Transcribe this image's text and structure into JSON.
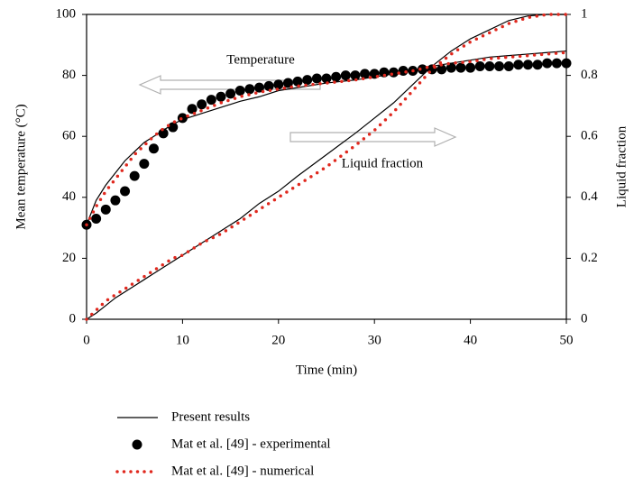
{
  "chart_data": {
    "type": "line",
    "x_label": "Time (min)",
    "y_label": "Mean temperature (°C)",
    "y2_label": "Liquid fraction",
    "xlim": [
      0,
      50
    ],
    "xticks": [
      0,
      10,
      20,
      30,
      40,
      50
    ],
    "ylim": [
      0,
      100
    ],
    "yticks": [
      0,
      20,
      40,
      60,
      80,
      100
    ],
    "y2lim": [
      0,
      1
    ],
    "y2ticks": [
      0,
      0.2,
      0.4,
      0.6,
      0.8,
      1
    ],
    "annotations": [
      "Temperature",
      "Liquid fraction"
    ],
    "series": [
      {
        "name": "Present results",
        "style": "line",
        "color": "#000000",
        "x": [
          0,
          1,
          2,
          3,
          4,
          5,
          6,
          7,
          8,
          9,
          10,
          12,
          14,
          16,
          18,
          20,
          22,
          25,
          28,
          30,
          32,
          34,
          36,
          38,
          40,
          42,
          44,
          46,
          48,
          50
        ],
        "values": [
          31,
          39,
          44,
          48,
          52,
          55,
          58,
          60,
          62,
          64,
          65.5,
          67.5,
          69.5,
          71.5,
          73,
          75,
          76,
          77.5,
          78.5,
          79.5,
          80.5,
          81.5,
          83,
          84,
          85,
          86,
          86.5,
          87,
          87.5,
          88
        ]
      },
      {
        "name": "Present results",
        "style": "line",
        "color": "#000000",
        "axis": "y2",
        "x": [
          0,
          1,
          2,
          3,
          4,
          5,
          6,
          7,
          8,
          9,
          10,
          12,
          14,
          16,
          18,
          20,
          22,
          25,
          28,
          30,
          32,
          34,
          36,
          38,
          40,
          42,
          44,
          46,
          48,
          50
        ],
        "values": [
          0,
          0.02,
          0.045,
          0.07,
          0.09,
          0.11,
          0.13,
          0.15,
          0.17,
          0.19,
          0.21,
          0.25,
          0.29,
          0.33,
          0.38,
          0.42,
          0.47,
          0.54,
          0.61,
          0.66,
          0.71,
          0.77,
          0.83,
          0.88,
          0.92,
          0.95,
          0.98,
          0.995,
          1,
          1
        ]
      },
      {
        "name": "Mat et al. [49] - experimental",
        "style": "marker",
        "color": "#000000",
        "x": [
          0,
          1,
          2,
          3,
          4,
          5,
          6,
          7,
          8,
          9,
          10,
          11,
          12,
          13,
          14,
          15,
          16,
          17,
          18,
          19,
          20,
          21,
          22,
          23,
          24,
          25,
          26,
          27,
          28,
          29,
          30,
          31,
          32,
          33,
          34,
          35,
          36,
          37,
          38,
          39,
          40,
          41,
          42,
          43,
          44,
          45,
          46,
          47,
          48,
          49,
          50
        ],
        "values": [
          31,
          33,
          36,
          39,
          42,
          47,
          51,
          56,
          61,
          63,
          66,
          69,
          70.5,
          72,
          73,
          74,
          75,
          75.5,
          76,
          76.5,
          77,
          77.5,
          78,
          78.5,
          79,
          79,
          79.5,
          80,
          80,
          80.5,
          80.5,
          81,
          81,
          81.5,
          81.5,
          82,
          82,
          82,
          82.5,
          82.5,
          82.5,
          83,
          83,
          83,
          83,
          83.5,
          83.5,
          83.5,
          84,
          84,
          84
        ]
      },
      {
        "name": "Mat et al. [49] - numerical",
        "style": "dotted",
        "color": "#e0281e",
        "x": [
          0,
          1,
          2,
          3,
          4,
          5,
          6,
          7,
          8,
          9,
          10,
          12,
          14,
          16,
          18,
          20,
          22,
          25,
          28,
          30,
          32,
          34,
          36,
          38,
          40,
          42,
          44,
          46,
          48,
          50
        ],
        "values": [
          31,
          37,
          42,
          46,
          50,
          54,
          57,
          60,
          62.5,
          64.5,
          66,
          68.5,
          71,
          73,
          74.5,
          75.5,
          76.5,
          77.5,
          78.5,
          79.5,
          80.5,
          81.5,
          83,
          84,
          84.5,
          85.5,
          86,
          86.5,
          87,
          87.5
        ]
      },
      {
        "name": "Mat et al. [49] - numerical",
        "style": "dotted",
        "color": "#e0281e",
        "axis": "y2",
        "x": [
          0,
          1,
          2,
          3,
          4,
          5,
          6,
          7,
          8,
          9,
          10,
          12,
          14,
          16,
          18,
          20,
          22,
          25,
          28,
          30,
          32,
          34,
          36,
          38,
          40,
          42,
          44,
          46,
          48,
          50
        ],
        "values": [
          0,
          0.03,
          0.06,
          0.08,
          0.1,
          0.12,
          0.14,
          0.16,
          0.18,
          0.2,
          0.21,
          0.25,
          0.28,
          0.32,
          0.36,
          0.4,
          0.44,
          0.5,
          0.57,
          0.62,
          0.68,
          0.75,
          0.82,
          0.87,
          0.91,
          0.94,
          0.97,
          0.99,
          1,
          1
        ]
      }
    ]
  }
}
